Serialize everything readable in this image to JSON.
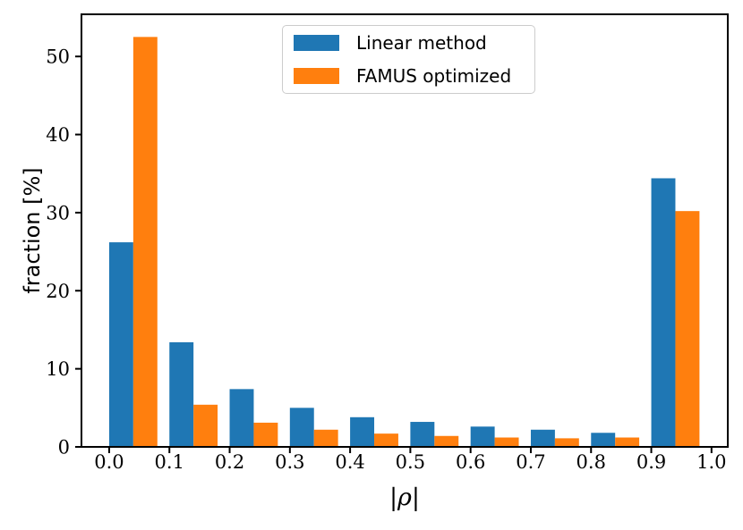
{
  "chart_data": {
    "type": "bar",
    "subtype": "grouped_histogram",
    "title": "",
    "xlabel": "|ρ|",
    "ylabel": "fraction [%]",
    "bin_edges": [
      0.0,
      0.1,
      0.2,
      0.3,
      0.4,
      0.5,
      0.6,
      0.7,
      0.8,
      0.9,
      1.0
    ],
    "xtick_labels": [
      "0.0",
      "0.1",
      "0.2",
      "0.3",
      "0.4",
      "0.5",
      "0.6",
      "0.7",
      "0.8",
      "0.9",
      "1.0"
    ],
    "ytick_values": [
      0,
      10,
      20,
      30,
      40,
      50
    ],
    "xlim": [
      -0.046,
      1.027
    ],
    "ylim": [
      0,
      55.4
    ],
    "grid": false,
    "legend_position": "upper center",
    "axis_color": "#000000",
    "series": [
      {
        "name": "Linear method",
        "color": "#1f77b4",
        "values": [
          26.2,
          13.4,
          7.4,
          5.0,
          3.8,
          3.2,
          2.6,
          2.2,
          1.8,
          34.4
        ]
      },
      {
        "name": "FAMUS optimized",
        "color": "#ff7f0e",
        "values": [
          52.5,
          5.4,
          3.1,
          2.2,
          1.7,
          1.4,
          1.2,
          1.1,
          1.2,
          30.2
        ]
      }
    ]
  }
}
